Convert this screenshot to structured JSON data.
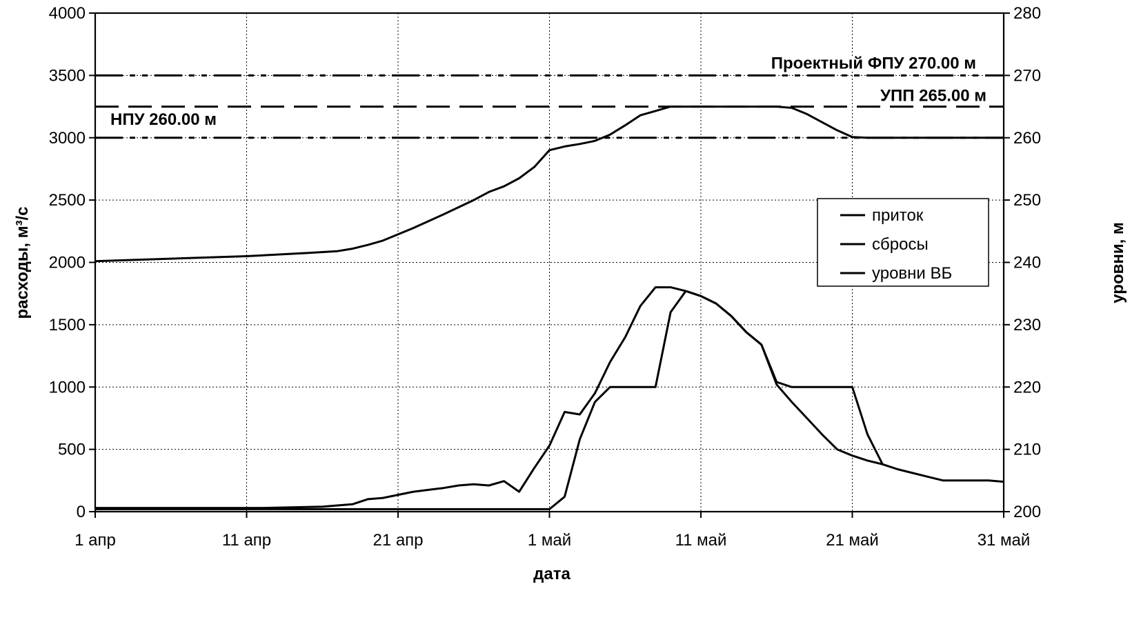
{
  "chart_data": {
    "type": "line",
    "xlabel": "дата",
    "ylabel_left": "расходы, м³/с",
    "ylabel_right": "уровни, м",
    "x_ticks": [
      "1 апр",
      "11 апр",
      "21 апр",
      "1 май",
      "11 май",
      "21 май",
      "31 май"
    ],
    "x_tick_days": [
      1,
      11,
      21,
      31,
      41,
      51,
      61
    ],
    "xlim": [
      1,
      61
    ],
    "ylim_left": [
      0,
      4000
    ],
    "ylim_right": [
      200,
      280
    ],
    "y_ticks_left": [
      0,
      500,
      1000,
      1500,
      2000,
      2500,
      3000,
      3500,
      4000
    ],
    "y_ticks_right": [
      200,
      210,
      220,
      230,
      240,
      250,
      260,
      270,
      280
    ],
    "grid": true,
    "legend_position": "center-right",
    "reference_lines": [
      {
        "label": "Проектный ФПУ 270.00 м",
        "level": 270,
        "style": "dash-dot-dot"
      },
      {
        "label": "УПП 265.00 м",
        "level": 265,
        "style": "dashed"
      },
      {
        "label": "НПУ 260.00 м",
        "level": 260,
        "style": "dash-dot-dot"
      }
    ],
    "series": [
      {
        "name": "приток",
        "axis": "left",
        "x": [
          1,
          12,
          16,
          18,
          19,
          20,
          22,
          23,
          24,
          25,
          26,
          27,
          28,
          29,
          30,
          31,
          32,
          33,
          34,
          35,
          36,
          37,
          38,
          39,
          40,
          41,
          42,
          43,
          44,
          45,
          46,
          47,
          48,
          49,
          50,
          51,
          52,
          53,
          54,
          55,
          56,
          57,
          58,
          59,
          60,
          61
        ],
        "values": [
          30,
          30,
          40,
          60,
          100,
          110,
          160,
          175,
          190,
          210,
          220,
          210,
          245,
          160,
          350,
          530,
          800,
          780,
          950,
          1200,
          1400,
          1650,
          1800,
          1800,
          1770,
          1730,
          1670,
          1570,
          1440,
          1340,
          1020,
          880,
          750,
          620,
          500,
          450,
          410,
          380,
          340,
          310,
          280,
          250,
          250,
          250,
          250,
          240
        ]
      },
      {
        "name": "сбросы",
        "axis": "left",
        "x": [
          1,
          31,
          32,
          33,
          34,
          35,
          36,
          37,
          38,
          39,
          40,
          41,
          42,
          43,
          44,
          45,
          46,
          47,
          48,
          49,
          50,
          51,
          52,
          53
        ],
        "values": [
          20,
          20,
          120,
          580,
          880,
          1000,
          1000,
          1000,
          1000,
          1600,
          1770,
          1730,
          1670,
          1570,
          1440,
          1340,
          1040,
          1000,
          1000,
          1000,
          1000,
          1000,
          620,
          380
        ]
      },
      {
        "name": "уровни ВБ",
        "axis": "right",
        "x": [
          1,
          6,
          11,
          15,
          17,
          18,
          19,
          20,
          22,
          24,
          26,
          27,
          28,
          29,
          30,
          31,
          32,
          33,
          34,
          35,
          36,
          37,
          38,
          39,
          40,
          41,
          42,
          43,
          44,
          45,
          46,
          47,
          48,
          49,
          50,
          51,
          52,
          61
        ],
        "values": [
          240.2,
          240.6,
          241,
          241.5,
          241.8,
          242.2,
          242.8,
          243.5,
          245.5,
          247.7,
          250,
          251.3,
          252.2,
          253.5,
          255.3,
          258,
          258.6,
          259,
          259.5,
          260.5,
          262,
          263.6,
          264.3,
          265,
          265,
          265,
          265,
          265,
          265,
          265,
          265,
          264.8,
          263.8,
          262.5,
          261.2,
          260.1,
          260,
          260
        ]
      }
    ]
  }
}
